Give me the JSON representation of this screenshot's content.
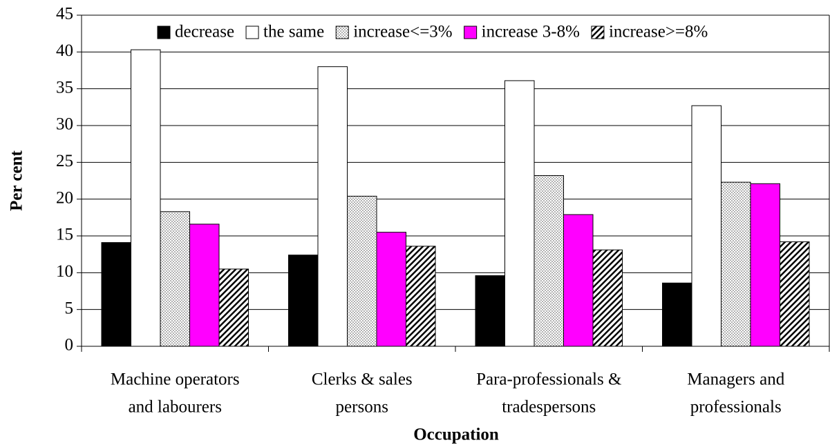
{
  "chart_data": {
    "type": "bar",
    "y_label": "Per cent",
    "x_label": "Occupation",
    "categories": [
      [
        "Machine operators",
        "and labourers"
      ],
      [
        "Clerks & sales",
        "persons"
      ],
      [
        "Para-professionals &",
        "tradespersons"
      ],
      [
        "Managers and",
        "professionals"
      ]
    ],
    "series": [
      {
        "name": "decrease",
        "color": "#000000",
        "pattern": "solid",
        "values": [
          14.1,
          12.4,
          9.6,
          8.6
        ]
      },
      {
        "name": "the same",
        "color": "#ffffff",
        "pattern": "solid",
        "values": [
          40.3,
          38.0,
          36.1,
          32.7
        ]
      },
      {
        "name": "increase<=3%",
        "color": "#ffffff",
        "pattern": "dots",
        "values": [
          18.3,
          20.4,
          23.2,
          22.3
        ]
      },
      {
        "name": "increase 3-8%",
        "color": "#ff00ff",
        "pattern": "solid",
        "values": [
          16.6,
          15.5,
          17.9,
          22.1
        ]
      },
      {
        "name": "increase>=8%",
        "color": "#ffffff",
        "pattern": "hatch",
        "values": [
          10.5,
          13.6,
          13.1,
          14.2
        ]
      }
    ],
    "ylim": [
      0,
      45
    ],
    "yticks": [
      0,
      5,
      10,
      15,
      20,
      25,
      30,
      35,
      40,
      45
    ],
    "grid": true,
    "legend": "top"
  }
}
